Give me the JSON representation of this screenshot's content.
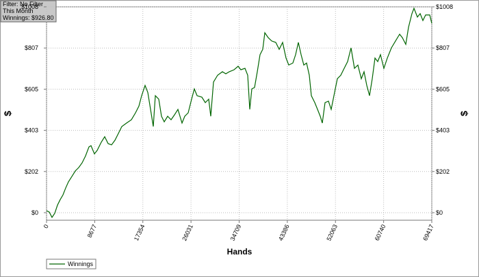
{
  "info": [
    "Filter: No Filter",
    "This Month",
    "Winnings: $926.80"
  ],
  "chart_data": {
    "type": "line",
    "x_label": "Hands",
    "y_label": "$",
    "grid": true,
    "legend": "bottom-left",
    "xlim": [
      0,
      69417
    ],
    "xticks": [
      0,
      8677,
      17354,
      26031,
      34709,
      43386,
      52063,
      60740,
      69417
    ],
    "ylim": [
      -37,
      1008
    ],
    "yticks": [
      {
        "value": 0,
        "label": "$0"
      },
      {
        "value": 201.6,
        "label": "$202"
      },
      {
        "value": 403.2,
        "label": "$403"
      },
      {
        "value": 604.8,
        "label": "$605"
      },
      {
        "value": 806.4,
        "label": "$807"
      },
      {
        "value": 1008,
        "label": "$1008"
      }
    ],
    "x": [
      0,
      493,
      986,
      1480,
      1973,
      2466,
      2959,
      3452,
      3946,
      4562,
      5179,
      5795,
      6412,
      7028,
      7645,
      8015,
      8631,
      9124,
      9864,
      10481,
      11097,
      11714,
      12330,
      12947,
      13563,
      14426,
      15289,
      16029,
      16646,
      17139,
      17755,
      18248,
      18742,
      19235,
      19605,
      20221,
      20714,
      21208,
      21824,
      22441,
      23057,
      23674,
      24413,
      24907,
      25523,
      26140,
      26633,
      27126,
      27989,
      28606,
      29222,
      29592,
      30085,
      30825,
      31688,
      32305,
      32921,
      33784,
      34524,
      35017,
      35757,
      36250,
      36620,
      36990,
      37483,
      37976,
      38470,
      38963,
      39333,
      39949,
      40566,
      41306,
      41922,
      42539,
      43155,
      43648,
      44388,
      44881,
      45374,
      45868,
      46361,
      46854,
      47347,
      47717,
      48334,
      48827,
      49320,
      49690,
      50183,
      50800,
      51293,
      51786,
      52403,
      53019,
      53636,
      54252,
      54869,
      55485,
      56102,
      56718,
      57211,
      57704,
      58198,
      58691,
      59184,
      59677,
      60170,
      60787,
      61403,
      62143,
      62883,
      63623,
      64116,
      64733,
      65226,
      65842,
      66212,
      66829,
      67322,
      67815,
      68308,
      69048,
      69417
    ],
    "series": [
      {
        "name": "Winnings",
        "color": "#006400",
        "values": [
          10,
          3,
          -23,
          -3,
          37,
          64,
          87,
          121,
          151,
          177,
          204,
          221,
          244,
          278,
          322,
          328,
          288,
          305,
          345,
          372,
          338,
          332,
          355,
          388,
          422,
          439,
          455,
          489,
          522,
          573,
          623,
          589,
          506,
          422,
          573,
          556,
          472,
          445,
          472,
          455,
          479,
          506,
          439,
          472,
          489,
          556,
          606,
          573,
          566,
          539,
          556,
          472,
          640,
          673,
          690,
          680,
          690,
          700,
          717,
          700,
          707,
          673,
          506,
          606,
          613,
          690,
          774,
          800,
          881,
          857,
          841,
          834,
          800,
          834,
          757,
          723,
          733,
          774,
          834,
          774,
          723,
          733,
          673,
          573,
          539,
          506,
          472,
          439,
          539,
          546,
          506,
          573,
          656,
          673,
          707,
          740,
          807,
          707,
          723,
          656,
          690,
          623,
          573,
          656,
          757,
          740,
          774,
          707,
          757,
          807,
          841,
          874,
          857,
          824,
          908,
          975,
          1001,
          958,
          975,
          941,
          968,
          968,
          927
        ]
      }
    ]
  }
}
